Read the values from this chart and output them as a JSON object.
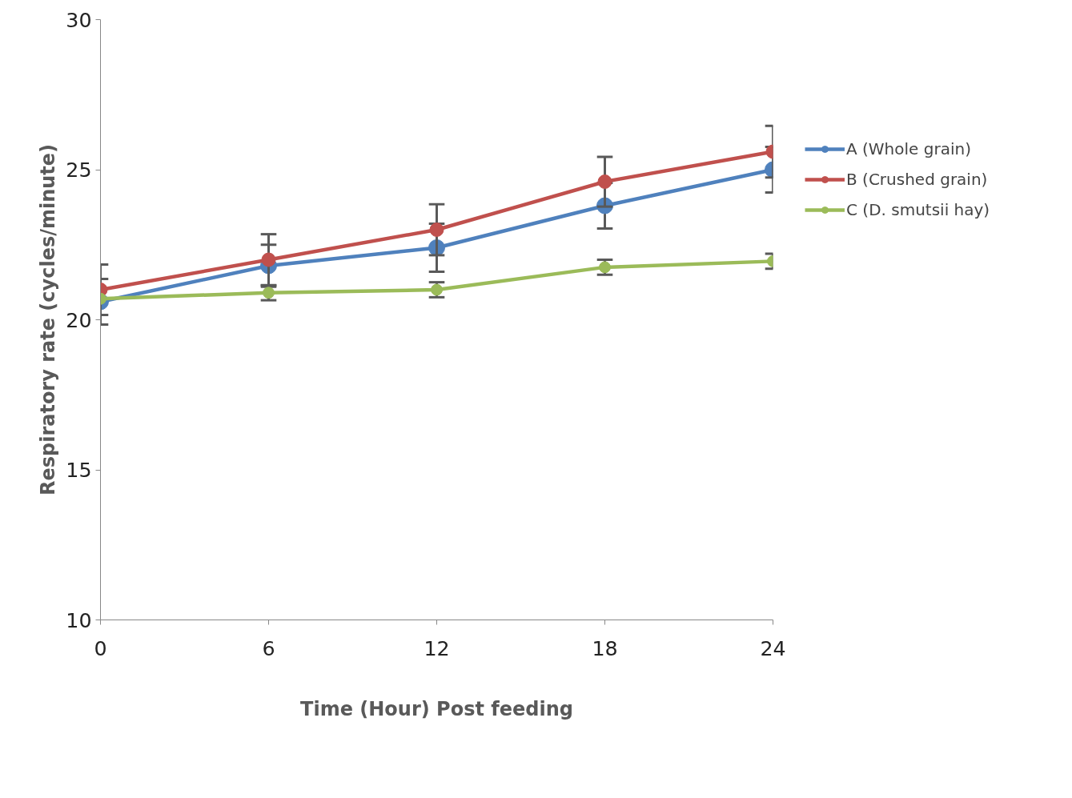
{
  "chart_data": {
    "type": "line",
    "xlabel": "Time (Hour) Post feeding",
    "ylabel": "Respiratory rate (cycles/minute)",
    "x": [
      0,
      6,
      12,
      18,
      24
    ],
    "series": [
      {
        "name": "A (Whole grain)",
        "color": "#4f81bd",
        "values": [
          20.6,
          21.8,
          22.4,
          23.8,
          25.0
        ],
        "errors": [
          0.76,
          0.7,
          0.8,
          0.76,
          0.76
        ]
      },
      {
        "name": "B (Crushed grain)",
        "color": "#c0504d",
        "values": [
          21.0,
          22.0,
          23.0,
          24.6,
          25.6
        ],
        "errors": [
          0.84,
          0.85,
          0.85,
          0.83,
          0.86
        ]
      },
      {
        "name": "C (D. smutsii hay)",
        "color": "#9bbb59",
        "values": [
          20.7,
          20.9,
          21.0,
          21.75,
          21.95
        ],
        "errors": [
          null,
          0.25,
          0.25,
          0.25,
          0.25
        ]
      }
    ],
    "xlim": [
      0,
      24
    ],
    "xticks": [
      0,
      6,
      12,
      18,
      24
    ],
    "ylim": [
      10,
      30
    ],
    "yticks": [
      10,
      15,
      20,
      25,
      30
    ],
    "grid": false,
    "legend": "right",
    "marker": "circle",
    "line_style": "solid"
  }
}
